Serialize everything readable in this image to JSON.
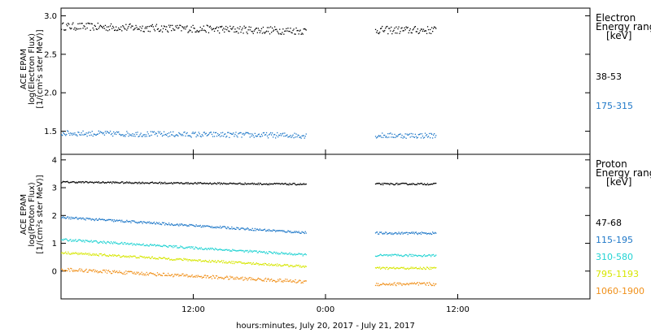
{
  "chart_data": [
    {
      "type": "scatter",
      "panel": "electron",
      "ylabel_lines": [
        "ACE EPAM",
        "log(Electron Flux)",
        "[1/(cm²s ster MeV)]"
      ],
      "ylim": [
        1.2,
        3.1
      ],
      "yticks": [
        1.5,
        2.0,
        2.5,
        3.0
      ],
      "ytick_labels": [
        "1.5",
        "2.0",
        "2.5",
        "3.0"
      ],
      "legend_title_lines": [
        "Electron",
        "Energy range",
        "[keV]"
      ],
      "series": [
        {
          "name": "38-53",
          "color": "#000000",
          "level": 2.87,
          "noise": 0.05,
          "trend": -0.06,
          "gap_level": 2.82
        },
        {
          "name": "175-315",
          "color": "#1f78c8",
          "level": 1.48,
          "noise": 0.035,
          "trend": -0.03,
          "gap_level": 1.45
        }
      ]
    },
    {
      "type": "scatter",
      "panel": "proton",
      "ylabel_lines": [
        "ACE EPAM",
        "log(Proton Flux)",
        "[1/(cm²s ster MeV)]"
      ],
      "ylim": [
        -1.0,
        4.2
      ],
      "yticks": [
        0,
        1,
        2,
        3,
        4
      ],
      "ytick_labels": [
        "0",
        "1",
        "2",
        "3",
        "4"
      ],
      "legend_title_lines": [
        "Proton",
        "Energy range",
        "[keV]"
      ],
      "series": [
        {
          "name": "47-68",
          "color": "#000000",
          "level": 3.22,
          "noise": 0.03,
          "trend": -0.08,
          "gap_level": 3.15
        },
        {
          "name": "115-195",
          "color": "#1f78c8",
          "level": 1.95,
          "noise": 0.04,
          "trend": -0.55,
          "gap_level": 1.38
        },
        {
          "name": "310-580",
          "color": "#22d3d3",
          "level": 1.15,
          "noise": 0.04,
          "trend": -0.55,
          "gap_level": 0.58
        },
        {
          "name": "795-1193",
          "color": "#d6e600",
          "level": 0.68,
          "noise": 0.04,
          "trend": -0.5,
          "gap_level": 0.12
        },
        {
          "name": "1060-1900",
          "color": "#f0901a",
          "level": 0.08,
          "noise": 0.06,
          "trend": -0.45,
          "gap_level": -0.45
        }
      ]
    }
  ],
  "x_axis": {
    "xlim": [
      0,
      48
    ],
    "ticks": [
      12,
      24,
      36
    ],
    "tick_labels": [
      "12:00",
      "0:00",
      "12:00"
    ],
    "title": "hours:minutes, July 20, 2017 - July 21, 2017",
    "data_segments": [
      [
        0,
        22.2
      ],
      [
        28.5,
        34.0
      ]
    ]
  }
}
